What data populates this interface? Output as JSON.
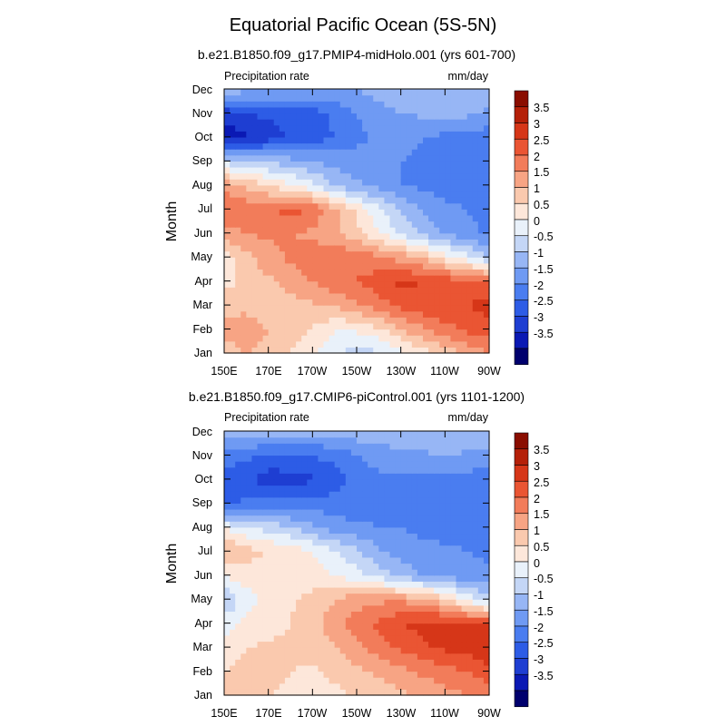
{
  "figure": {
    "title": "Equatorial Pacific Ocean (5S-5N)"
  },
  "colors": {
    "levels_palette": [
      "#00006e",
      "#0a19b4",
      "#1e3ed2",
      "#2d5ce6",
      "#4a7df0",
      "#6f9af3",
      "#97b6f5",
      "#c4d6f6",
      "#e9f1fa",
      "#fde7da",
      "#fac9ae",
      "#f7a484",
      "#f27c5a",
      "#ea5533",
      "#d63618",
      "#b52008",
      "#8a0d00"
    ]
  },
  "chart_data": [
    {
      "type": "heatmap",
      "title": "b.e21.B1850.f09_g17.PMIP4-midHolo.001 (yrs 601-700)",
      "left_string": "Precipitation rate",
      "right_string": "mm/day",
      "ylabel": "Month",
      "x_ticks": [
        "150E",
        "170E",
        "170W",
        "150W",
        "130W",
        "110W",
        "90W"
      ],
      "x_values_deg_east": [
        150,
        170,
        190,
        210,
        230,
        250,
        270
      ],
      "y_ticks": [
        "Jan",
        "Feb",
        "Mar",
        "Apr",
        "May",
        "Jun",
        "Jul",
        "Aug",
        "Sep",
        "Oct",
        "Nov",
        "Dec"
      ],
      "xlim": [
        150,
        270
      ],
      "colorbar_levels": [
        "3.5",
        "3",
        "2.5",
        "2",
        "1.5",
        "1",
        "0.5",
        "0",
        "-0.5",
        "-1",
        "-1.5",
        "-2",
        "-2.5",
        "-3",
        "-3.5"
      ],
      "grid_lon": [
        150,
        160,
        170,
        180,
        190,
        200,
        210,
        220,
        230,
        240,
        250,
        260,
        270
      ],
      "grid_month": [
        "Jan",
        "Feb",
        "Mar",
        "Apr",
        "May",
        "Jun",
        "Jul",
        "Aug",
        "Sep",
        "Oct",
        "Nov",
        "Dec"
      ],
      "values": [
        [
          1.3,
          1.5,
          1.3,
          1.0,
          0.6,
          0.1,
          -0.2,
          -0.1,
          0.3,
          0.7,
          1.2,
          1.6,
          2.0
        ],
        [
          1.6,
          1.7,
          1.5,
          1.3,
          1.0,
          0.5,
          0.6,
          0.9,
          1.5,
          1.9,
          2.3,
          2.6,
          2.8
        ],
        [
          1.3,
          1.4,
          1.2,
          1.3,
          1.4,
          1.6,
          1.9,
          2.3,
          2.6,
          2.9,
          3.0,
          3.0,
          3.2
        ],
        [
          0.8,
          1.2,
          1.4,
          1.7,
          2.0,
          2.3,
          2.5,
          2.8,
          3.1,
          3.0,
          2.8,
          2.6,
          2.6
        ],
        [
          0.8,
          1.3,
          1.8,
          2.1,
          2.3,
          2.4,
          2.3,
          2.1,
          1.8,
          1.4,
          0.8,
          0.2,
          -0.6
        ],
        [
          1.8,
          2.0,
          2.1,
          2.0,
          1.9,
          1.6,
          1.1,
          0.6,
          -0.1,
          -0.6,
          -1.1,
          -1.4,
          -1.6
        ],
        [
          2.6,
          2.3,
          2.3,
          2.8,
          2.4,
          1.6,
          0.9,
          0.1,
          -0.6,
          -1.1,
          -1.4,
          -1.5,
          -1.6
        ],
        [
          1.8,
          1.4,
          1.0,
          0.6,
          0.1,
          -0.5,
          -0.9,
          -1.2,
          -1.5,
          -1.6,
          -1.7,
          -1.7,
          -1.9
        ],
        [
          -0.2,
          -0.4,
          -0.6,
          -0.8,
          -1.0,
          -1.2,
          -1.3,
          -1.4,
          -1.5,
          -1.6,
          -1.7,
          -1.7,
          -2.0
        ],
        [
          -3.4,
          -3.1,
          -2.8,
          -2.4,
          -2.3,
          -2.0,
          -1.6,
          -1.4,
          -1.4,
          -1.5,
          -1.6,
          -1.6,
          -1.8
        ],
        [
          -2.8,
          -2.5,
          -2.4,
          -2.3,
          -2.2,
          -1.9,
          -1.5,
          -1.2,
          -1.0,
          -0.9,
          -0.9,
          -0.9,
          -1.1
        ],
        [
          -0.7,
          -0.8,
          -0.9,
          -1.0,
          -1.0,
          -1.1,
          -1.0,
          -0.8,
          -0.7,
          -0.6,
          -0.6,
          -0.6,
          -0.6
        ]
      ]
    },
    {
      "type": "heatmap",
      "title": "b.e21.B1850.f09_g17.CMIP6-piControl.001 (yrs 1101-1200)",
      "left_string": "Precipitation rate",
      "right_string": "mm/day",
      "ylabel": "Month",
      "x_ticks": [
        "150E",
        "170E",
        "170W",
        "150W",
        "130W",
        "110W",
        "90W"
      ],
      "x_values_deg_east": [
        150,
        170,
        190,
        210,
        230,
        250,
        270
      ],
      "y_ticks": [
        "Jan",
        "Feb",
        "Mar",
        "Apr",
        "May",
        "Jun",
        "Jul",
        "Aug",
        "Sep",
        "Oct",
        "Nov",
        "Dec"
      ],
      "xlim": [
        150,
        270
      ],
      "colorbar_levels": [
        "3.5",
        "3",
        "2.5",
        "2",
        "1.5",
        "1",
        "0.5",
        "0",
        "-0.5",
        "-1",
        "-1.5",
        "-2",
        "-2.5",
        "-3",
        "-3.5"
      ],
      "grid_lon": [
        150,
        160,
        170,
        180,
        190,
        200,
        210,
        220,
        230,
        240,
        250,
        260,
        270
      ],
      "grid_month": [
        "Jan",
        "Feb",
        "Mar",
        "Apr",
        "May",
        "Jun",
        "Jul",
        "Aug",
        "Sep",
        "Oct",
        "Nov",
        "Dec"
      ],
      "values": [
        [
          1.2,
          1.1,
          1.0,
          0.9,
          0.8,
          0.9,
          1.0,
          1.2,
          1.4,
          1.6,
          1.8,
          2.0,
          2.2
        ],
        [
          1.0,
          1.2,
          1.1,
          1.0,
          0.9,
          1.1,
          1.4,
          1.6,
          1.8,
          2.1,
          2.3,
          2.5,
          2.8
        ],
        [
          0.7,
          1.0,
          1.1,
          1.1,
          1.2,
          1.5,
          1.9,
          2.3,
          2.6,
          2.9,
          3.1,
          3.2,
          3.5
        ],
        [
          0.3,
          0.6,
          0.8,
          1.0,
          1.3,
          1.8,
          2.2,
          2.6,
          3.0,
          3.2,
          3.2,
          3.0,
          3.0
        ],
        [
          -0.6,
          0.3,
          0.6,
          0.9,
          1.2,
          1.5,
          1.8,
          1.9,
          1.9,
          1.6,
          1.2,
          0.4,
          -0.4
        ],
        [
          0.6,
          0.7,
          0.8,
          0.8,
          0.7,
          0.5,
          0.2,
          -0.2,
          -0.6,
          -1.0,
          -1.2,
          -1.3,
          -1.4
        ],
        [
          1.6,
          1.2,
          1.0,
          0.9,
          0.5,
          0.0,
          -0.4,
          -0.9,
          -1.2,
          -1.4,
          -1.4,
          -1.5,
          -1.6
        ],
        [
          0.4,
          0.1,
          -0.2,
          -0.5,
          -0.9,
          -1.2,
          -1.4,
          -1.5,
          -1.5,
          -1.6,
          -1.7,
          -1.7,
          -1.8
        ],
        [
          -2.1,
          -1.9,
          -1.8,
          -1.8,
          -1.7,
          -1.8,
          -1.8,
          -1.7,
          -1.7,
          -1.7,
          -1.7,
          -1.7,
          -1.8
        ],
        [
          -2.4,
          -2.3,
          -2.8,
          -2.7,
          -2.6,
          -2.3,
          -1.8,
          -1.6,
          -1.6,
          -1.6,
          -1.7,
          -1.7,
          -1.8
        ],
        [
          -1.7,
          -1.9,
          -2.1,
          -2.1,
          -2.0,
          -1.8,
          -1.5,
          -1.3,
          -1.2,
          -1.1,
          -1.0,
          -1.1,
          -1.2
        ],
        [
          -0.6,
          -0.7,
          -0.7,
          -0.8,
          -0.8,
          -0.8,
          -0.7,
          -0.6,
          -0.6,
          -0.5,
          -0.5,
          -0.5,
          -0.6
        ]
      ]
    }
  ]
}
